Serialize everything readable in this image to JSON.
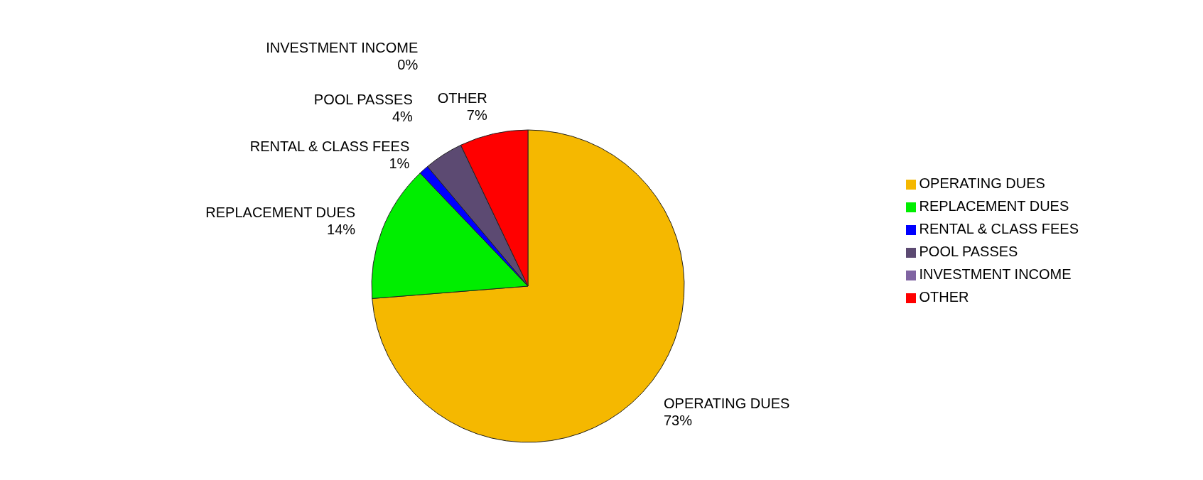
{
  "chart_data": {
    "type": "pie",
    "categories": [
      "OPERATING DUES",
      "REPLACEMENT DUES",
      "RENTAL & CLASS FEES",
      "POOL PASSES",
      "INVESTMENT INCOME",
      "OTHER"
    ],
    "values": [
      73,
      14,
      1,
      4,
      0,
      7
    ],
    "value_labels": [
      "73%",
      "14%",
      "1%",
      "4%",
      "0%",
      "7%"
    ],
    "colors": [
      "#f5b800",
      "#00ee00",
      "#0000ff",
      "#5c4a72",
      "#8064a2",
      "#ff0000"
    ],
    "legend": "right"
  }
}
